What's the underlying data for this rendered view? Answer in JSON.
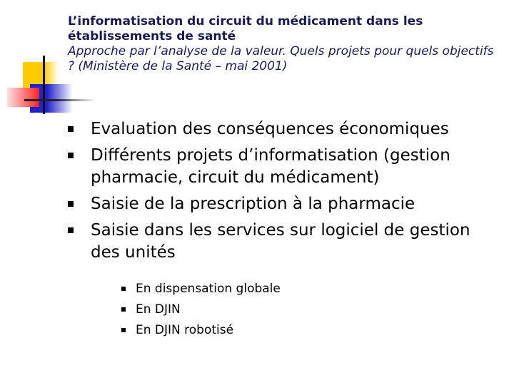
{
  "title": {
    "line1": "L’informatisation du circuit  du médicament dans les établissements de santé",
    "line2": "Approche par l’analyse de la valeur. Quels projets pour quels objectifs ? (Ministère de la Santé – mai 2001)"
  },
  "bullets": [
    "Evaluation des conséquences économiques",
    "Différents projets d’informatisation (gestion pharmacie, circuit du médicament)",
    "Saisie de la prescription à la pharmacie",
    "Saisie dans les services sur logiciel de gestion des unités"
  ],
  "sub_bullets": [
    "En dispensation globale",
    "En DJIN",
    "En DJIN robotisé"
  ]
}
